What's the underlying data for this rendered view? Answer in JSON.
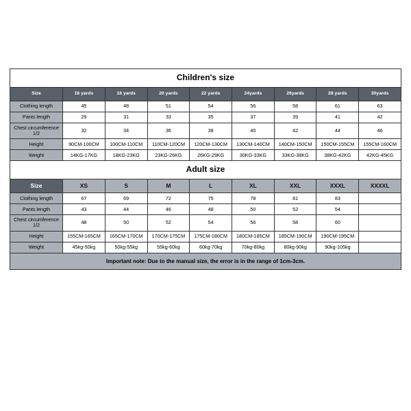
{
  "children_title": "Children's size",
  "adult_title": "Adult size",
  "note": "Important note: Due to the manual size, the error is in the range of 1cm-3cm.",
  "labels": {
    "size": "Size",
    "clothing_length": "Clothing length",
    "pants_length": "Pants length",
    "chest": "Chest circumference 1/2",
    "height": "Height",
    "weight": "Weight"
  },
  "children_sizes": [
    "16 yards",
    "18 yards",
    "20 yards",
    "22 yards",
    "24yards",
    "26yards",
    "28 yards",
    "30yards"
  ],
  "children": {
    "clothing_length": [
      "45",
      "48",
      "51",
      "54",
      "56",
      "58",
      "61",
      "63"
    ],
    "pants_length": [
      "29",
      "31",
      "33",
      "35",
      "37",
      "39",
      "41",
      "42"
    ],
    "chest": [
      "32",
      "34",
      "36",
      "38",
      "40",
      "42",
      "44",
      "46"
    ],
    "height": [
      "90CM-100CM",
      "100CM-110CM",
      "110CM-120CM",
      "120CM-130CM",
      "130CM-140CM",
      "140CM-150CM",
      "150CM-155CM",
      "155CM-160CM"
    ],
    "weight": [
      "14KG-17KG",
      "18KG-23KG",
      "23KG-26KG",
      "26KG-29KG",
      "30KG-33KG",
      "33KG-38KG",
      "38KG-42KG",
      "42KG-45KG"
    ]
  },
  "adult_sizes": [
    "XS",
    "S",
    "M",
    "L",
    "XL",
    "XXL",
    "XXXL",
    "XXXXL"
  ],
  "adult": {
    "clothing_length": [
      "67",
      "69",
      "72",
      "75",
      "78",
      "81",
      "83",
      ""
    ],
    "pants_length": [
      "43",
      "44",
      "46",
      "48",
      "50",
      "52",
      "54",
      ""
    ],
    "chest": [
      "48",
      "50",
      "52",
      "54",
      "56",
      "58",
      "60",
      ""
    ],
    "height": [
      "155CM-165CM",
      "165CM-170CM",
      "170CM-175CM",
      "175CM-180CM",
      "180CM-185CM",
      "185CM-190CM",
      "190CM-195CM",
      ""
    ],
    "weight": [
      "45kg-50kg",
      "50kg-55kg",
      "55kg-60kg",
      "60kg-70kg",
      "70kg-80kg",
      "80kg-90kg",
      "90kg-105kg",
      ""
    ]
  },
  "colors": {
    "border": "#333333",
    "header_bg": "#5a606a",
    "header_fg": "#ffffff",
    "label_bg": "#abb0b8",
    "page_bg": "#ffffff"
  }
}
